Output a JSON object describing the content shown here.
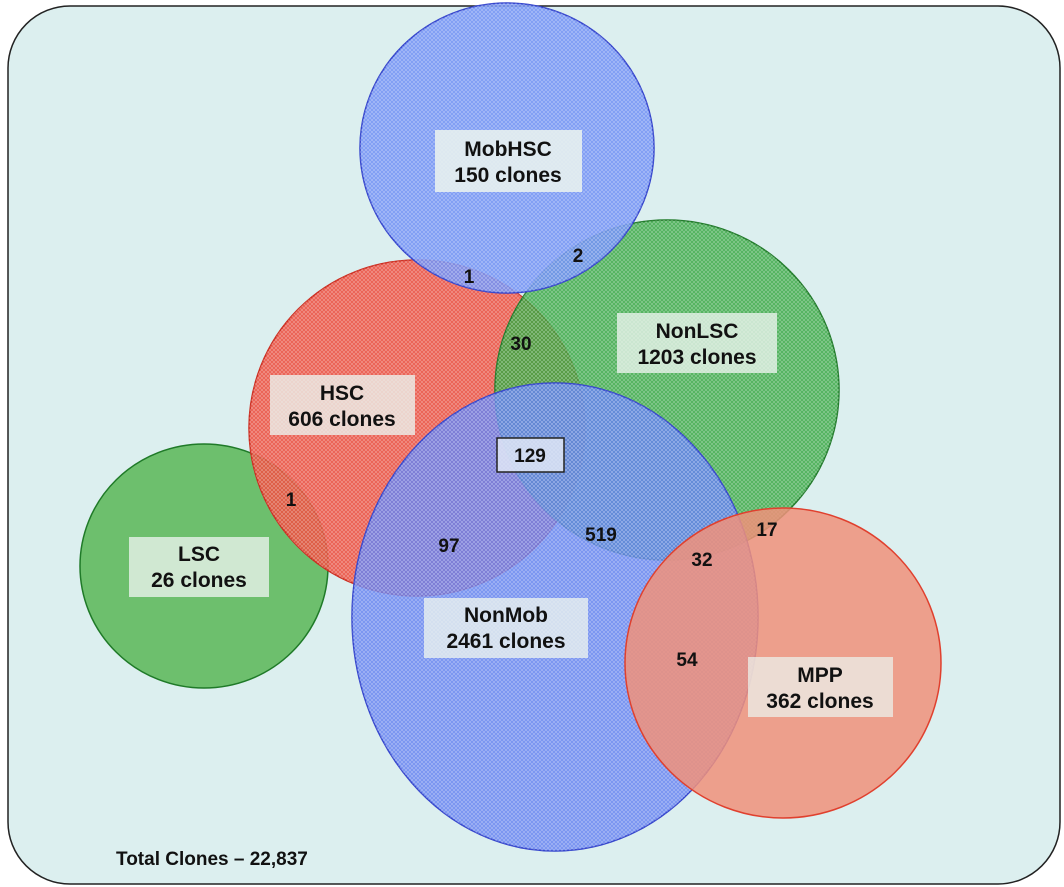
{
  "diagram": {
    "colors": {
      "background": "#dcefef",
      "frame": "#222222",
      "blue": "#6f8ff5",
      "blue_stroke": "#3344cc",
      "green": "#2fa33a",
      "green_stroke": "#1f7a28",
      "red": "#ec4a3a",
      "red_stroke": "#cc2b1e",
      "lsc_green": "#6dbf6d",
      "mpp_salmon": "#f0907a",
      "label_box": "#ecf4ee"
    },
    "sets": [
      {
        "id": "mobhsc",
        "name": "MobHSC",
        "count": "150 clones"
      },
      {
        "id": "nonlsc",
        "name": "NonLSC",
        "count": "1203 clones"
      },
      {
        "id": "hsc",
        "name": "HSC",
        "count": "606 clones"
      },
      {
        "id": "lsc",
        "name": "LSC",
        "count": "26 clones"
      },
      {
        "id": "nonmob",
        "name": "NonMob",
        "count": "2461 clones"
      },
      {
        "id": "mpp",
        "name": "MPP",
        "count": "362 clones"
      }
    ],
    "intersections": [
      {
        "id": "mobhsc-hsc",
        "value": "1"
      },
      {
        "id": "mobhsc-nonlsc",
        "value": "2"
      },
      {
        "id": "hsc-nonlsc",
        "value": "30"
      },
      {
        "id": "hsc-nonlsc-nonmob",
        "value": "129"
      },
      {
        "id": "lsc-hsc",
        "value": "1"
      },
      {
        "id": "hsc-nonmob",
        "value": "97"
      },
      {
        "id": "nonlsc-nonmob",
        "value": "519"
      },
      {
        "id": "nonlsc-mpp",
        "value": "17"
      },
      {
        "id": "nonlsc-nonmob-mpp",
        "value": "32"
      },
      {
        "id": "nonmob-mpp",
        "value": "54"
      }
    ],
    "total": "Total Clones – 22,837"
  }
}
